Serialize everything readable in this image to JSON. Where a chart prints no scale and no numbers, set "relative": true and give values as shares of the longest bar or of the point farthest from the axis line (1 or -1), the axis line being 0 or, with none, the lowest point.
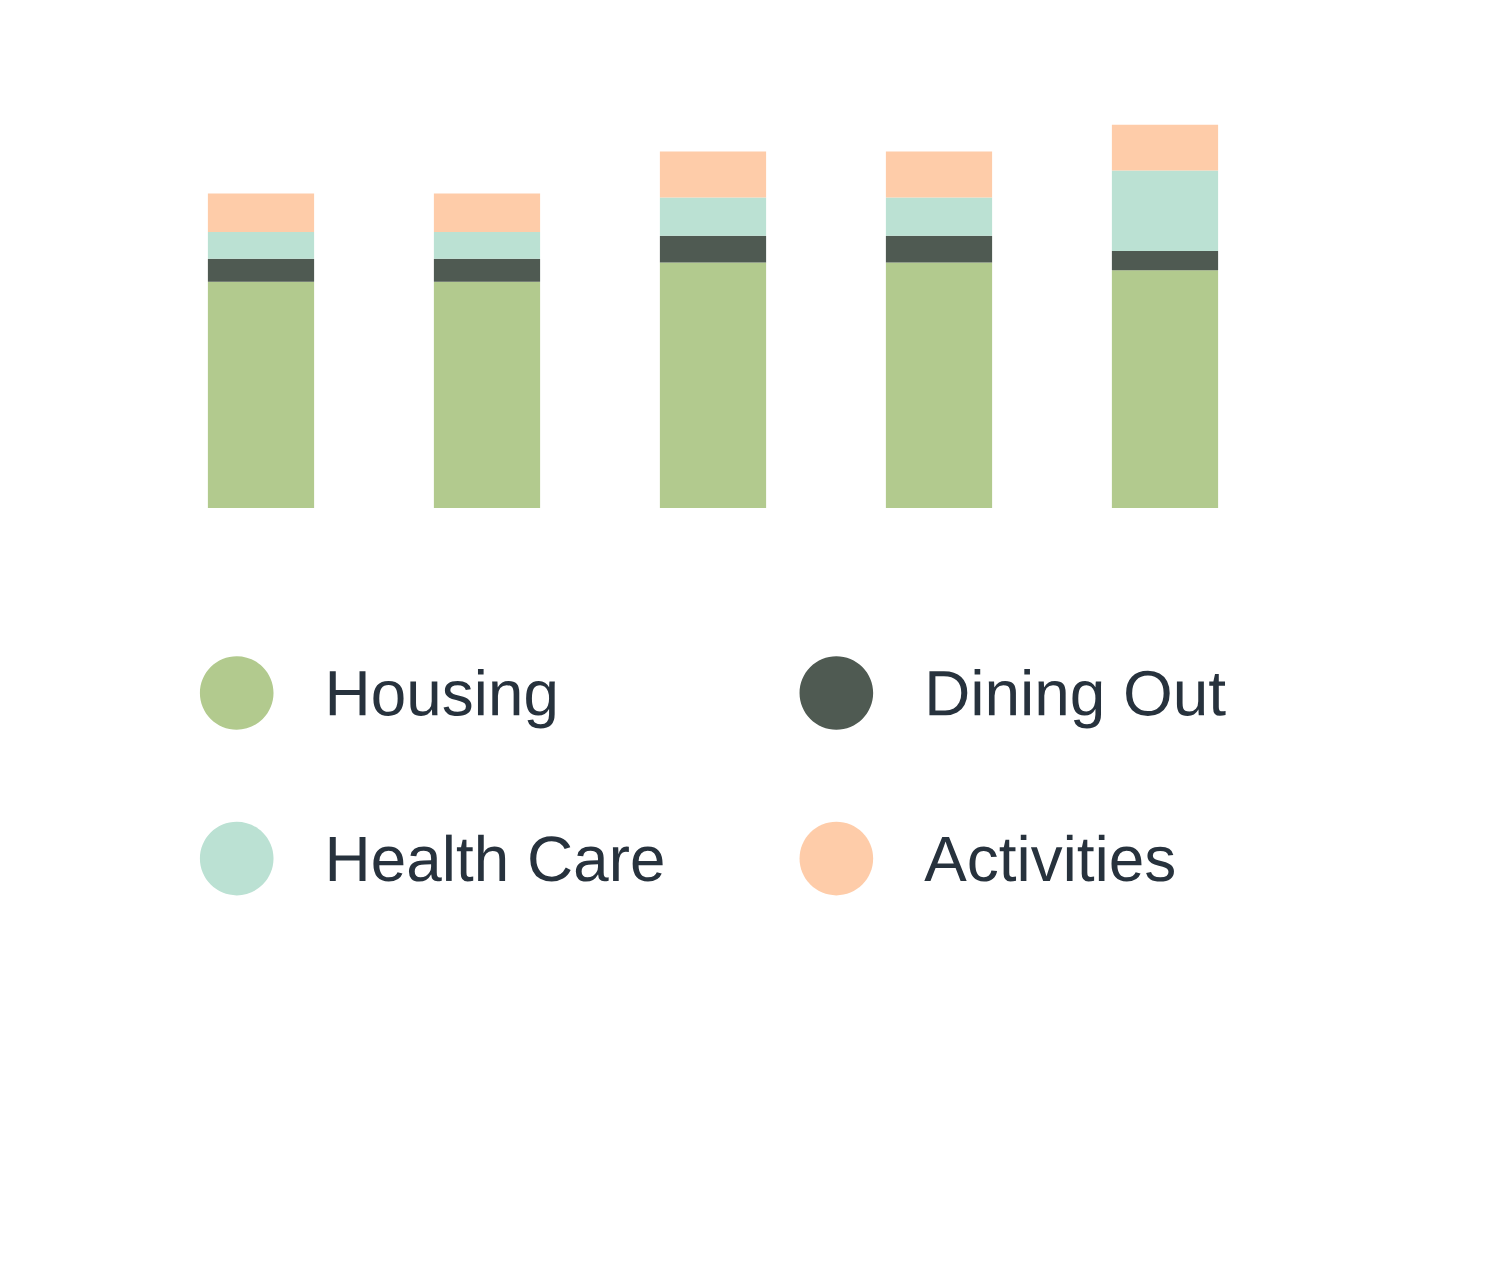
{
  "chart_data": {
    "type": "bar",
    "relative": true,
    "stacked": true,
    "legend": "bottom",
    "categories": [
      null,
      null,
      null,
      null,
      null
    ],
    "series": [
      {
        "name": "Housing",
        "color": "#b2ca8e",
        "values": [
          0.59,
          0.59,
          0.64,
          0.64,
          0.62
        ]
      },
      {
        "name": "Dining Out",
        "color": "#4f5a52",
        "values": [
          0.06,
          0.06,
          0.07,
          0.07,
          0.05
        ]
      },
      {
        "name": "Health Care",
        "color": "#bbe1d3",
        "values": [
          0.07,
          0.07,
          0.1,
          0.1,
          0.21
        ]
      },
      {
        "name": "Activities",
        "color": "#fecca9",
        "values": [
          0.1,
          0.1,
          0.12,
          0.12,
          0.12
        ]
      }
    ]
  }
}
